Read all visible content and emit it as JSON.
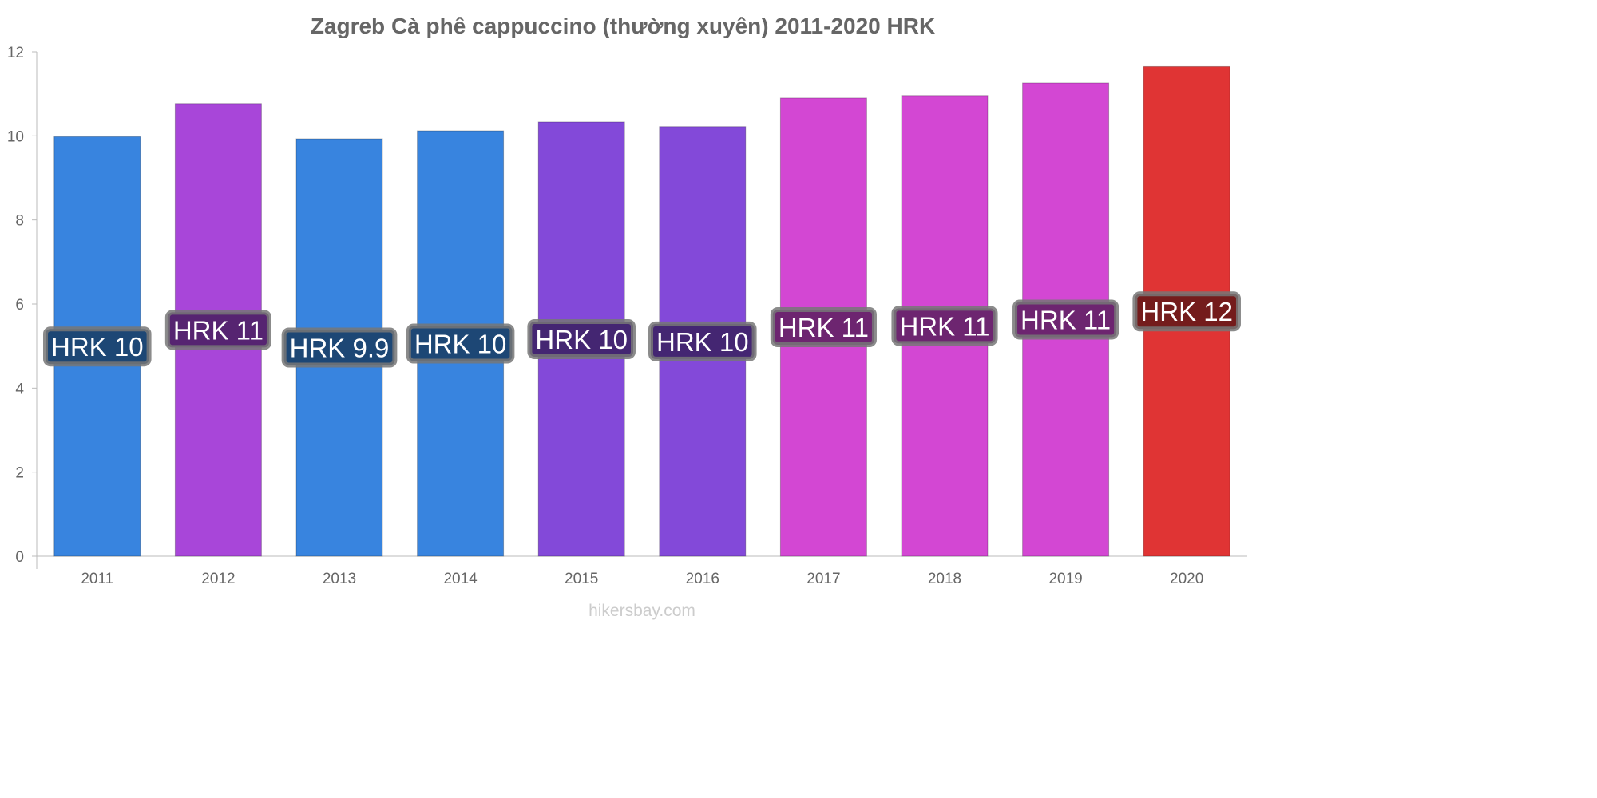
{
  "chart_data": {
    "type": "bar",
    "title": "Zagreb Cà phê cappuccino (thường xuyên) 2011-2020 HRK",
    "categories": [
      "2011",
      "2012",
      "2013",
      "2014",
      "2015",
      "2016",
      "2017",
      "2018",
      "2019",
      "2020"
    ],
    "values": [
      9.98,
      10.77,
      9.93,
      10.12,
      10.33,
      10.22,
      10.9,
      10.96,
      11.26,
      11.65
    ],
    "data_labels": [
      "HRK 10",
      "HRK 11",
      "HRK 9.9",
      "HRK 10",
      "HRK 10",
      "HRK 10",
      "HRK 11",
      "HRK 11",
      "HRK 11",
      "HRK 12"
    ],
    "bar_colors": [
      "#3884df",
      "#a846d9",
      "#3884df",
      "#3884df",
      "#8349d9",
      "#8349d9",
      "#d347d3",
      "#d347d3",
      "#d347d3",
      "#e03434"
    ],
    "label_bg_colors": [
      "#1d4775",
      "#562471",
      "#1d4775",
      "#1d4775",
      "#442672",
      "#442672",
      "#6d2570",
      "#6d2570",
      "#6d2570",
      "#741c1c"
    ],
    "yticks": [
      "0",
      "2",
      "4",
      "6",
      "8",
      "10",
      "12"
    ],
    "ylim": [
      0,
      12
    ],
    "xlabel": "",
    "ylabel": "",
    "grid": false,
    "legend": "none"
  },
  "watermark": "hikersbay.com"
}
